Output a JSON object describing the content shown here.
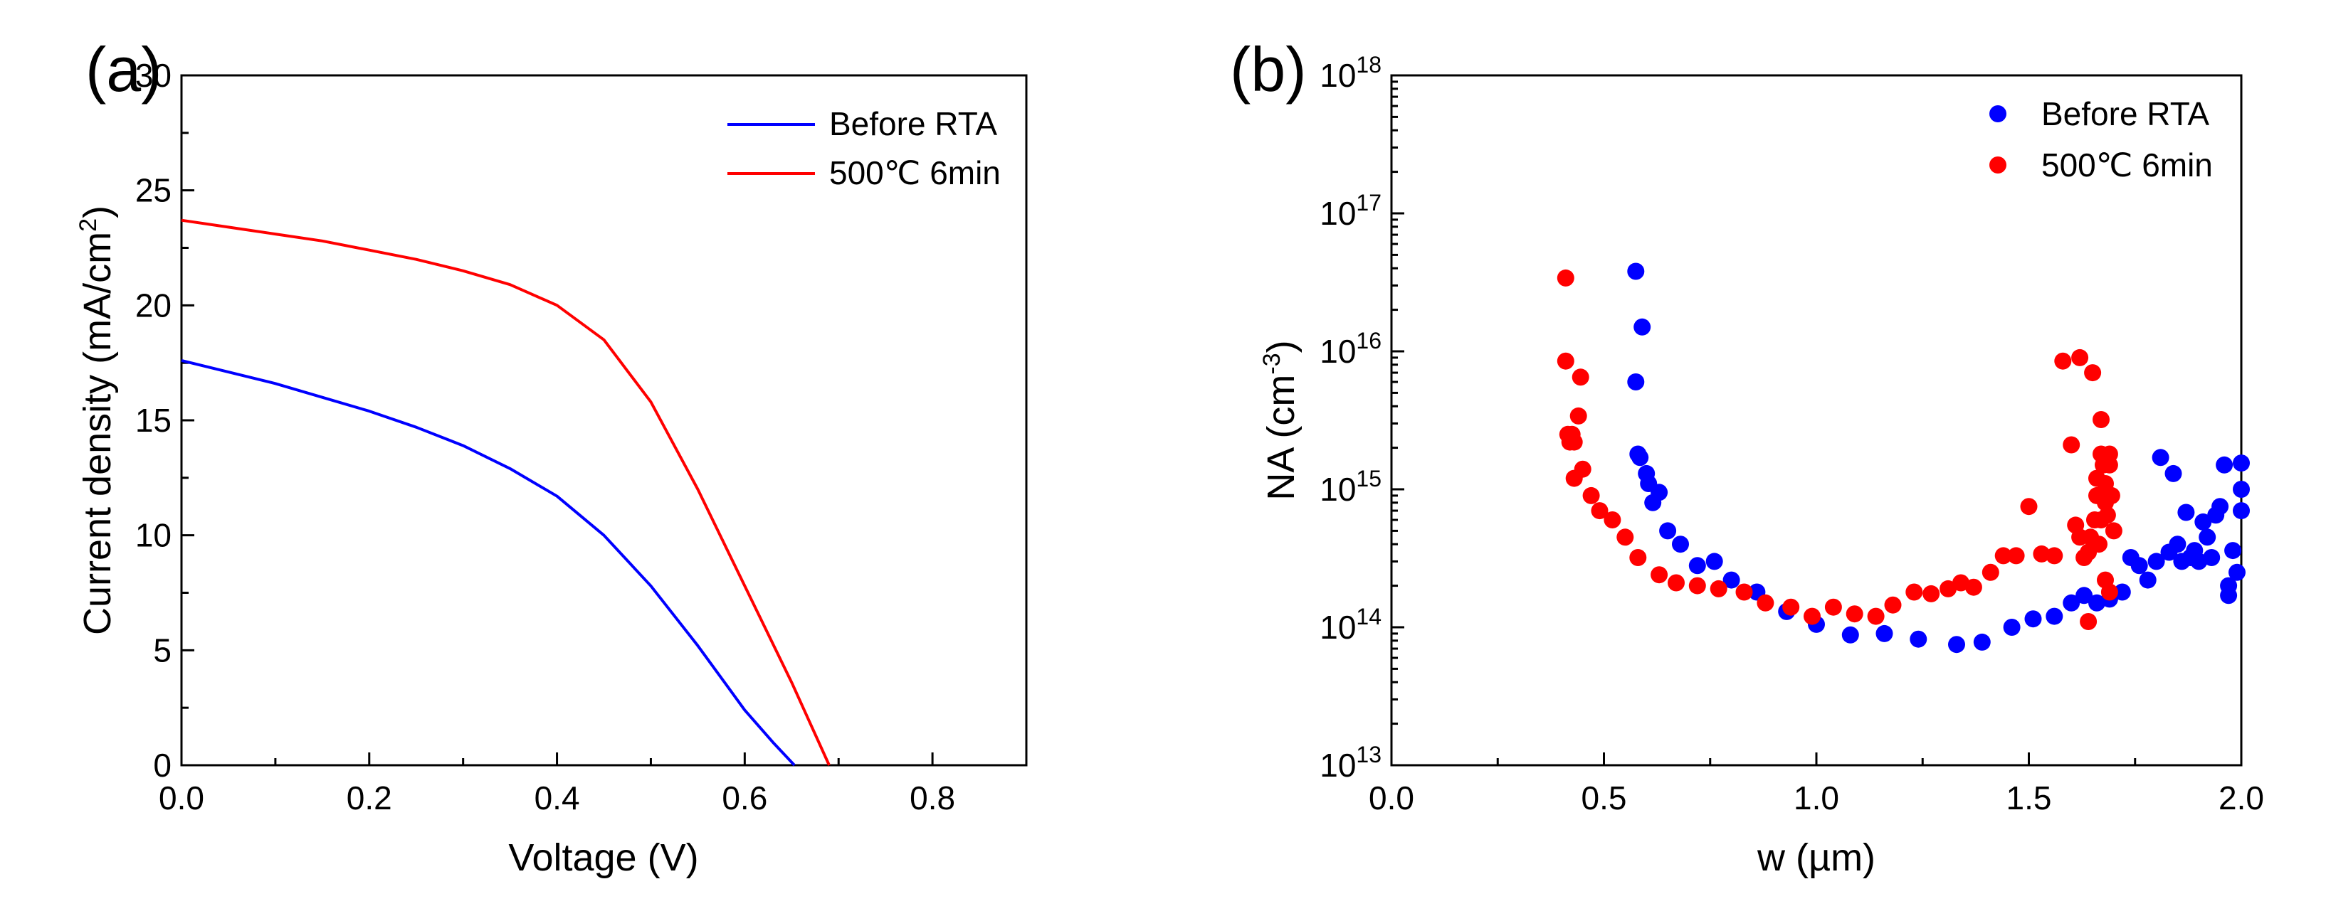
{
  "chart_data": [
    {
      "type": "line",
      "panel_label": "(a)",
      "xlabel": "Voltage (V)",
      "ylabel": "Current density (mA/cm",
      "ylabel_sup": "2",
      "ylabel_end": ")",
      "xlim": [
        0.0,
        0.9
      ],
      "ylim": [
        0,
        30
      ],
      "xticks": [
        "0.0",
        "0.2",
        "0.4",
        "0.6",
        "0.8"
      ],
      "yticks": [
        "0",
        "5",
        "10",
        "15",
        "20",
        "25",
        "30"
      ],
      "legend_position": "top-right",
      "series": [
        {
          "name": "Before RTA",
          "color": "#0000ff",
          "x": [
            0.0,
            0.05,
            0.1,
            0.15,
            0.2,
            0.25,
            0.3,
            0.35,
            0.4,
            0.45,
            0.5,
            0.55,
            0.6,
            0.63,
            0.653
          ],
          "y": [
            17.6,
            17.1,
            16.6,
            16.0,
            15.4,
            14.7,
            13.9,
            12.9,
            11.7,
            10.0,
            7.8,
            5.2,
            2.4,
            1.0,
            0.0
          ]
        },
        {
          "name": "500℃ 6min",
          "color": "#ff0000",
          "x": [
            0.0,
            0.05,
            0.1,
            0.15,
            0.2,
            0.25,
            0.3,
            0.35,
            0.4,
            0.45,
            0.5,
            0.55,
            0.6,
            0.65,
            0.69
          ],
          "y": [
            23.7,
            23.4,
            23.1,
            22.8,
            22.4,
            22.0,
            21.5,
            20.9,
            20.0,
            18.5,
            15.8,
            12.0,
            7.8,
            3.6,
            0.0
          ]
        }
      ]
    },
    {
      "type": "scatter",
      "panel_label": "(b)",
      "xlabel": "w (µm)",
      "ylabel": "NA (cm",
      "ylabel_sup": "-3",
      "ylabel_end": ")",
      "xlim": [
        0.0,
        2.0
      ],
      "ylim": [
        10000000000000.0,
        1e+18
      ],
      "yscale": "log",
      "xticks": [
        "0.0",
        "0.5",
        "1.0",
        "1.5",
        "2.0"
      ],
      "yticks_exponents": [
        "13",
        "14",
        "15",
        "16",
        "17",
        "18"
      ],
      "ytick_base": "10",
      "legend_position": "top-right",
      "series": [
        {
          "name": "Before RTA",
          "color": "#0000ff",
          "x": [
            0.575,
            0.575,
            0.58,
            0.585,
            0.59,
            0.6,
            0.605,
            0.615,
            0.63,
            0.65,
            0.68,
            0.72,
            0.76,
            0.8,
            0.86,
            0.93,
            1.0,
            1.08,
            1.16,
            1.24,
            1.33,
            1.39,
            1.46,
            1.51,
            1.56,
            1.6,
            1.63,
            1.66,
            1.69,
            1.72,
            1.74,
            1.76,
            1.78,
            1.8,
            1.81,
            1.83,
            1.84,
            1.85,
            1.86,
            1.87,
            1.88,
            1.89,
            1.9,
            1.91,
            1.92,
            1.93,
            1.94,
            1.95,
            1.96,
            1.97,
            1.97,
            1.98,
            1.99,
            2.0,
            2.0,
            2.0
          ],
          "y": [
            3.8e+16,
            6000000000000000.0,
            1800000000000000.0,
            1700000000000000.0,
            1.5e+16,
            1300000000000000.0,
            1100000000000000.0,
            800000000000000.0,
            950000000000000.0,
            500000000000000.0,
            400000000000000.0,
            280000000000000.0,
            300000000000000.0,
            220000000000000.0,
            180000000000000.0,
            130000000000000.0,
            105000000000000.0,
            88000000000000.0,
            90000000000000.0,
            82000000000000.0,
            75000000000000.0,
            78000000000000.0,
            100000000000000.0,
            115000000000000.0,
            120000000000000.0,
            150000000000000.0,
            170000000000000.0,
            150000000000000.0,
            160000000000000.0,
            180000000000000.0,
            320000000000000.0,
            280000000000000.0,
            220000000000000.0,
            300000000000000.0,
            1700000000000000.0,
            350000000000000.0,
            1300000000000000.0,
            400000000000000.0,
            300000000000000.0,
            680000000000000.0,
            320000000000000.0,
            360000000000000.0,
            300000000000000.0,
            580000000000000.0,
            450000000000000.0,
            320000000000000.0,
            650000000000000.0,
            750000000000000.0,
            1500000000000000.0,
            200000000000000.0,
            170000000000000.0,
            360000000000000.0,
            250000000000000.0,
            700000000000000.0,
            1000000000000000.0,
            1550000000000000.0
          ]
        },
        {
          "name": "500℃ 6min",
          "color": "#ff0000",
          "x": [
            0.41,
            0.41,
            0.415,
            0.42,
            0.425,
            0.43,
            0.43,
            0.44,
            0.445,
            0.45,
            0.47,
            0.49,
            0.52,
            0.55,
            0.58,
            0.63,
            0.67,
            0.72,
            0.77,
            0.83,
            0.88,
            0.94,
            0.99,
            1.04,
            1.09,
            1.14,
            1.18,
            1.23,
            1.27,
            1.31,
            1.34,
            1.37,
            1.41,
            1.44,
            1.47,
            1.5,
            1.53,
            1.56,
            1.58,
            1.6,
            1.61,
            1.62,
            1.62,
            1.63,
            1.64,
            1.645,
            1.65,
            1.655,
            1.66,
            1.665,
            1.67,
            1.67,
            1.675,
            1.68,
            1.68,
            1.685,
            1.69,
            1.69,
            1.695,
            1.7,
            1.64,
            1.66,
            1.67,
            1.68,
            1.69
          ],
          "y": [
            3.4e+16,
            8500000000000000.0,
            2500000000000000.0,
            2200000000000000.0,
            2500000000000000.0,
            1200000000000000.0,
            2200000000000000.0,
            3400000000000000.0,
            6500000000000000.0,
            1400000000000000.0,
            900000000000000.0,
            700000000000000.0,
            600000000000000.0,
            450000000000000.0,
            320000000000000.0,
            240000000000000.0,
            210000000000000.0,
            200000000000000.0,
            190000000000000.0,
            180000000000000.0,
            150000000000000.0,
            140000000000000.0,
            120000000000000.0,
            140000000000000.0,
            125000000000000.0,
            120000000000000.0,
            145000000000000.0,
            180000000000000.0,
            175000000000000.0,
            190000000000000.0,
            210000000000000.0,
            195000000000000.0,
            250000000000000.0,
            330000000000000.0,
            330000000000000.0,
            750000000000000.0,
            340000000000000.0,
            330000000000000.0,
            8500000000000000.0,
            2100000000000000.0,
            550000000000000.0,
            9000000000000000.0,
            450000000000000.0,
            320000000000000.0,
            110000000000000.0,
            450000000000000.0,
            7000000000000000.0,
            600000000000000.0,
            900000000000000.0,
            400000000000000.0,
            3200000000000000.0,
            1800000000000000.0,
            1500000000000000.0,
            1100000000000000.0,
            800000000000000.0,
            650000000000000.0,
            1800000000000000.0,
            1500000000000000.0,
            900000000000000.0,
            500000000000000.0,
            350000000000000.0,
            1200000000000000.0,
            600000000000000.0,
            220000000000000.0,
            180000000000000.0
          ]
        }
      ]
    }
  ]
}
